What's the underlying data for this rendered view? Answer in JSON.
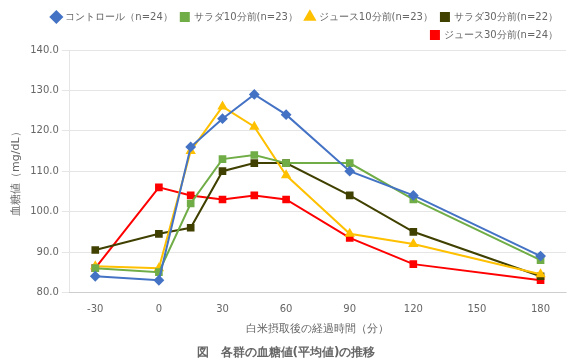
{
  "chart_data": {
    "type": "line",
    "title": "図　各群の血糖値(平均値)の推移",
    "x_label": "白米摂取後の経過時間（分）",
    "y_label": "血糖値（mg/dL）",
    "x": [
      -30,
      0,
      15,
      30,
      45,
      60,
      90,
      120,
      150,
      180
    ],
    "series": [
      {
        "name": "コントロール（n=24）",
        "color": "#4472C4",
        "marker": "diamond",
        "values": [
          84.0,
          83.0,
          116.0,
          123.0,
          129.0,
          124.0,
          110.0,
          104.0,
          null,
          89.0
        ]
      },
      {
        "name": "サラダ10分前(n=23）",
        "color": "#70AD47",
        "marker": "square",
        "values": [
          86.0,
          85.0,
          102.0,
          113.0,
          114.0,
          112.0,
          112.0,
          103.0,
          null,
          88.0
        ]
      },
      {
        "name": "ジュース10分前(n=23）",
        "color": "#FFC000",
        "marker": "triangle",
        "values": [
          86.5,
          86.0,
          115.0,
          126.0,
          121.0,
          109.0,
          94.5,
          92.0,
          null,
          84.5
        ]
      },
      {
        "name": "サラダ30分前(n=22）",
        "color": "#404000",
        "marker": "square",
        "values": [
          90.5,
          94.5,
          96.0,
          110.0,
          112.0,
          112.0,
          104.0,
          95.0,
          null,
          84.0
        ]
      },
      {
        "name": "ジュース30分前(n=24）",
        "color": "#FF0000",
        "marker": "square",
        "values": [
          86.0,
          106.0,
          104.0,
          103.0,
          104.0,
          103.0,
          93.5,
          87.0,
          null,
          83.0
        ]
      }
    ],
    "xlim": [
      -42,
      192
    ],
    "xticks": [
      -30,
      0,
      30,
      60,
      90,
      120,
      150,
      180
    ],
    "ylim": [
      80.0,
      140.0
    ],
    "yticks": [
      {
        "value": 80.0,
        "label": "80.0"
      },
      {
        "value": 90.0,
        "label": "90.0"
      },
      {
        "value": 100.0,
        "label": "100.0"
      },
      {
        "value": 110.0,
        "label": "110.0"
      },
      {
        "value": 120.0,
        "label": "120.0"
      },
      {
        "value": 130.0,
        "label": "130.0"
      },
      {
        "value": 140.0,
        "label": "140.0"
      }
    ],
    "grid": true,
    "legend": "upper right"
  }
}
